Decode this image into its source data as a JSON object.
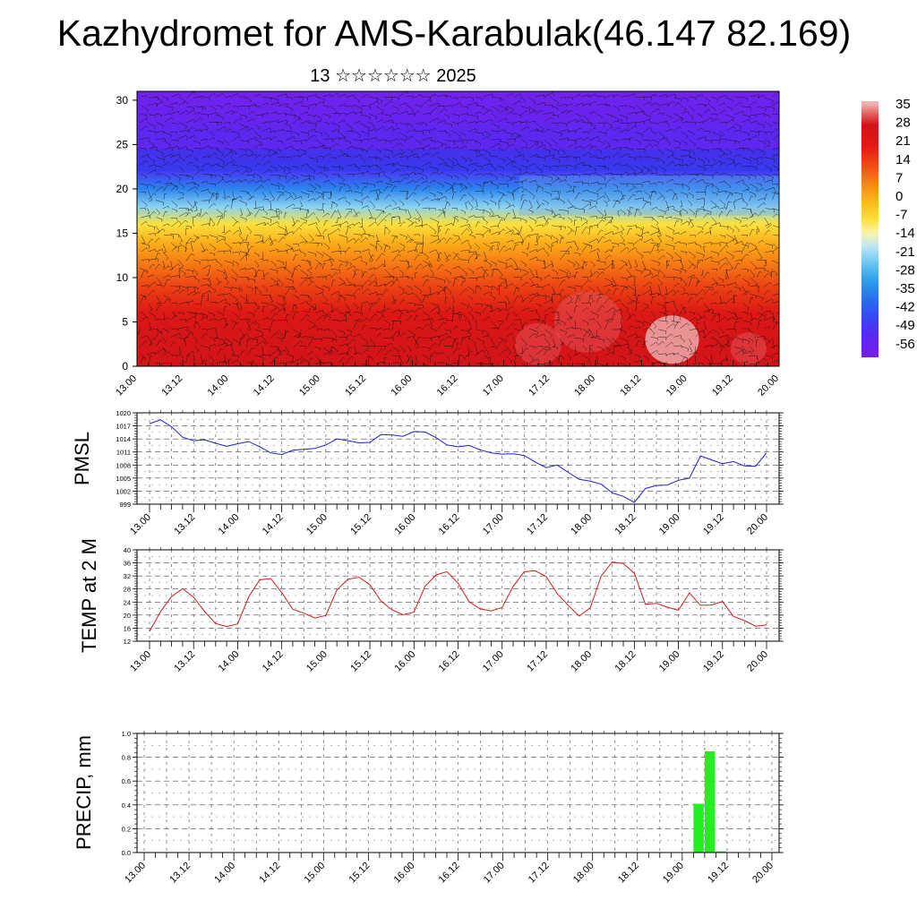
{
  "title": "Kazhydromet for AMS-Karabulak(46.147 82.169)",
  "subtitle": "13 ☆☆☆☆☆☆ 2025",
  "colors": {
    "pmsl_line": "#1f1fd6",
    "temp_line": "#d21a1a",
    "precip_bar": "#22ee22"
  },
  "x_ticks": [
    "13.00",
    "13.12",
    "14.00",
    "14.12",
    "15.00",
    "15.12",
    "16.00",
    "16.12",
    "17.00",
    "17.12",
    "18.00",
    "18.12",
    "19.00",
    "19.12",
    "20.00"
  ],
  "chart_data": [
    {
      "type": "heatmap",
      "panel": "cross-section",
      "xlim": [
        0,
        168
      ],
      "ylim": [
        0,
        31
      ],
      "y_ticks": [
        "0",
        "5",
        "10",
        "15",
        "20",
        "25",
        "30"
      ],
      "colorbar": {
        "labels": [
          "35",
          "28",
          "21",
          "14",
          "7",
          "0",
          "-7",
          "-14",
          "-21",
          "-28",
          "-35",
          "-42",
          "-49",
          "-56"
        ]
      },
      "wind_barbs": true,
      "temperature_profile": [
        {
          "height": 0,
          "value": 28
        },
        {
          "height": 3,
          "value": 26
        },
        {
          "height": 6,
          "value": 22
        },
        {
          "height": 9,
          "value": 14
        },
        {
          "height": 12,
          "value": 6
        },
        {
          "height": 14,
          "value": 0
        },
        {
          "height": 16,
          "value": -8
        },
        {
          "height": 18,
          "value": -22
        },
        {
          "height": 20,
          "value": -35
        },
        {
          "height": 22,
          "value": -48
        },
        {
          "height": 24,
          "value": -55
        },
        {
          "height": 26,
          "value": -52
        },
        {
          "height": 28,
          "value": -56
        },
        {
          "height": 31,
          "value": -58
        }
      ]
    },
    {
      "type": "line",
      "panel": "pmsl",
      "ylabel": "PMSL",
      "ylim": [
        999,
        1020
      ],
      "y_ticks": [
        "999",
        "1002",
        "1005",
        "1008",
        "1011",
        "1014",
        "1017",
        "1020"
      ],
      "x": [
        0,
        3,
        6,
        9,
        12,
        15,
        18,
        21,
        24,
        27,
        30,
        33,
        36,
        39,
        42,
        45,
        48,
        51,
        54,
        57,
        60,
        63,
        66,
        69,
        72,
        75,
        78,
        81,
        84,
        87,
        90,
        93,
        96,
        99,
        102,
        105,
        108,
        111,
        114,
        117,
        120,
        123,
        126,
        129,
        132,
        135,
        138,
        141,
        144,
        147,
        150,
        153,
        156,
        159,
        162,
        165,
        168
      ],
      "values": [
        1017.5,
        1018.4,
        1016.8,
        1014.4,
        1013.6,
        1013.8,
        1013.0,
        1012.3,
        1012.9,
        1013.4,
        1012.2,
        1010.8,
        1010.4,
        1011.4,
        1011.6,
        1011.8,
        1012.6,
        1014.0,
        1013.6,
        1013.1,
        1013.2,
        1015.0,
        1014.9,
        1014.6,
        1015.7,
        1015.6,
        1014.3,
        1012.6,
        1012.2,
        1012.5,
        1011.5,
        1010.8,
        1010.5,
        1010.6,
        1010.2,
        1008.7,
        1007.4,
        1008.0,
        1006.3,
        1004.7,
        1004.3,
        1003.6,
        1001.6,
        1000.8,
        999.4,
        1002.6,
        1003.3,
        1003.4,
        1004.5,
        1005.0,
        1010.1,
        1009.2,
        1008.3,
        1008.8,
        1007.8,
        1007.7,
        1010.8
      ]
    },
    {
      "type": "line",
      "panel": "temp",
      "ylabel": "TEMP at 2 M",
      "ylim": [
        12,
        40
      ],
      "y_ticks": [
        "12",
        "16",
        "20",
        "24",
        "28",
        "32",
        "36",
        "40"
      ],
      "x": [
        0,
        3,
        6,
        9,
        12,
        15,
        18,
        21,
        24,
        27,
        30,
        33,
        36,
        39,
        42,
        45,
        48,
        51,
        54,
        57,
        60,
        63,
        66,
        69,
        72,
        75,
        78,
        81,
        84,
        87,
        90,
        93,
        96,
        99,
        102,
        105,
        108,
        111,
        114,
        117,
        120,
        123,
        126,
        129,
        132,
        135,
        138,
        141,
        144,
        147,
        150,
        153,
        156,
        159,
        162,
        165,
        168
      ],
      "values": [
        15.0,
        21.1,
        25.7,
        28.1,
        25.5,
        21.1,
        17.4,
        16.5,
        17.3,
        25.6,
        30.8,
        31.2,
        26.9,
        21.8,
        20.6,
        19.1,
        19.9,
        27.7,
        31.0,
        31.6,
        29.3,
        24.3,
        21.6,
        20.1,
        20.9,
        28.8,
        32.3,
        33.3,
        29.8,
        24.1,
        21.9,
        21.3,
        22.3,
        28.8,
        33.3,
        33.6,
        31.8,
        26.6,
        23.0,
        19.7,
        22.2,
        32.0,
        36.3,
        35.8,
        32.8,
        23.3,
        23.6,
        22.4,
        21.5,
        26.8,
        23.0,
        23.1,
        24.2,
        19.6,
        18.3,
        16.6,
        17.0
      ]
    },
    {
      "type": "bar",
      "panel": "precip",
      "ylabel": "PRECIP, mm",
      "ylim": [
        0.0,
        1.0
      ],
      "y_ticks": [
        "0.0",
        "0.2",
        "0.4",
        "0.6",
        "0.8",
        "1.0"
      ],
      "x": [
        147,
        150,
        153
      ],
      "values": [
        0.41,
        0.85,
        0.01
      ]
    }
  ]
}
